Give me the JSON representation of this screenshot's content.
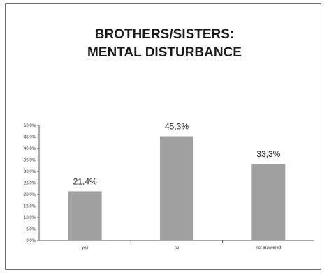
{
  "chart_data": {
    "type": "bar",
    "title_lines": [
      "BROTHERS/SISTERS:",
      "MENTAL DISTURBANCE"
    ],
    "categories": [
      "yes",
      "no",
      "not answered"
    ],
    "values": [
      21.4,
      45.3,
      33.3
    ],
    "data_labels": [
      "21,4%",
      "45,3%",
      "33,3%"
    ],
    "ylim": [
      0,
      50
    ],
    "yticks": [
      "0,0%",
      "5,0%",
      "10,0%",
      "15,0%",
      "20,0%",
      "25,0%",
      "30,0%",
      "35,0%",
      "40,0%",
      "45,0%",
      "50,0%"
    ],
    "bar_color": "#a0a0a0",
    "grid": false,
    "legend": "none"
  }
}
